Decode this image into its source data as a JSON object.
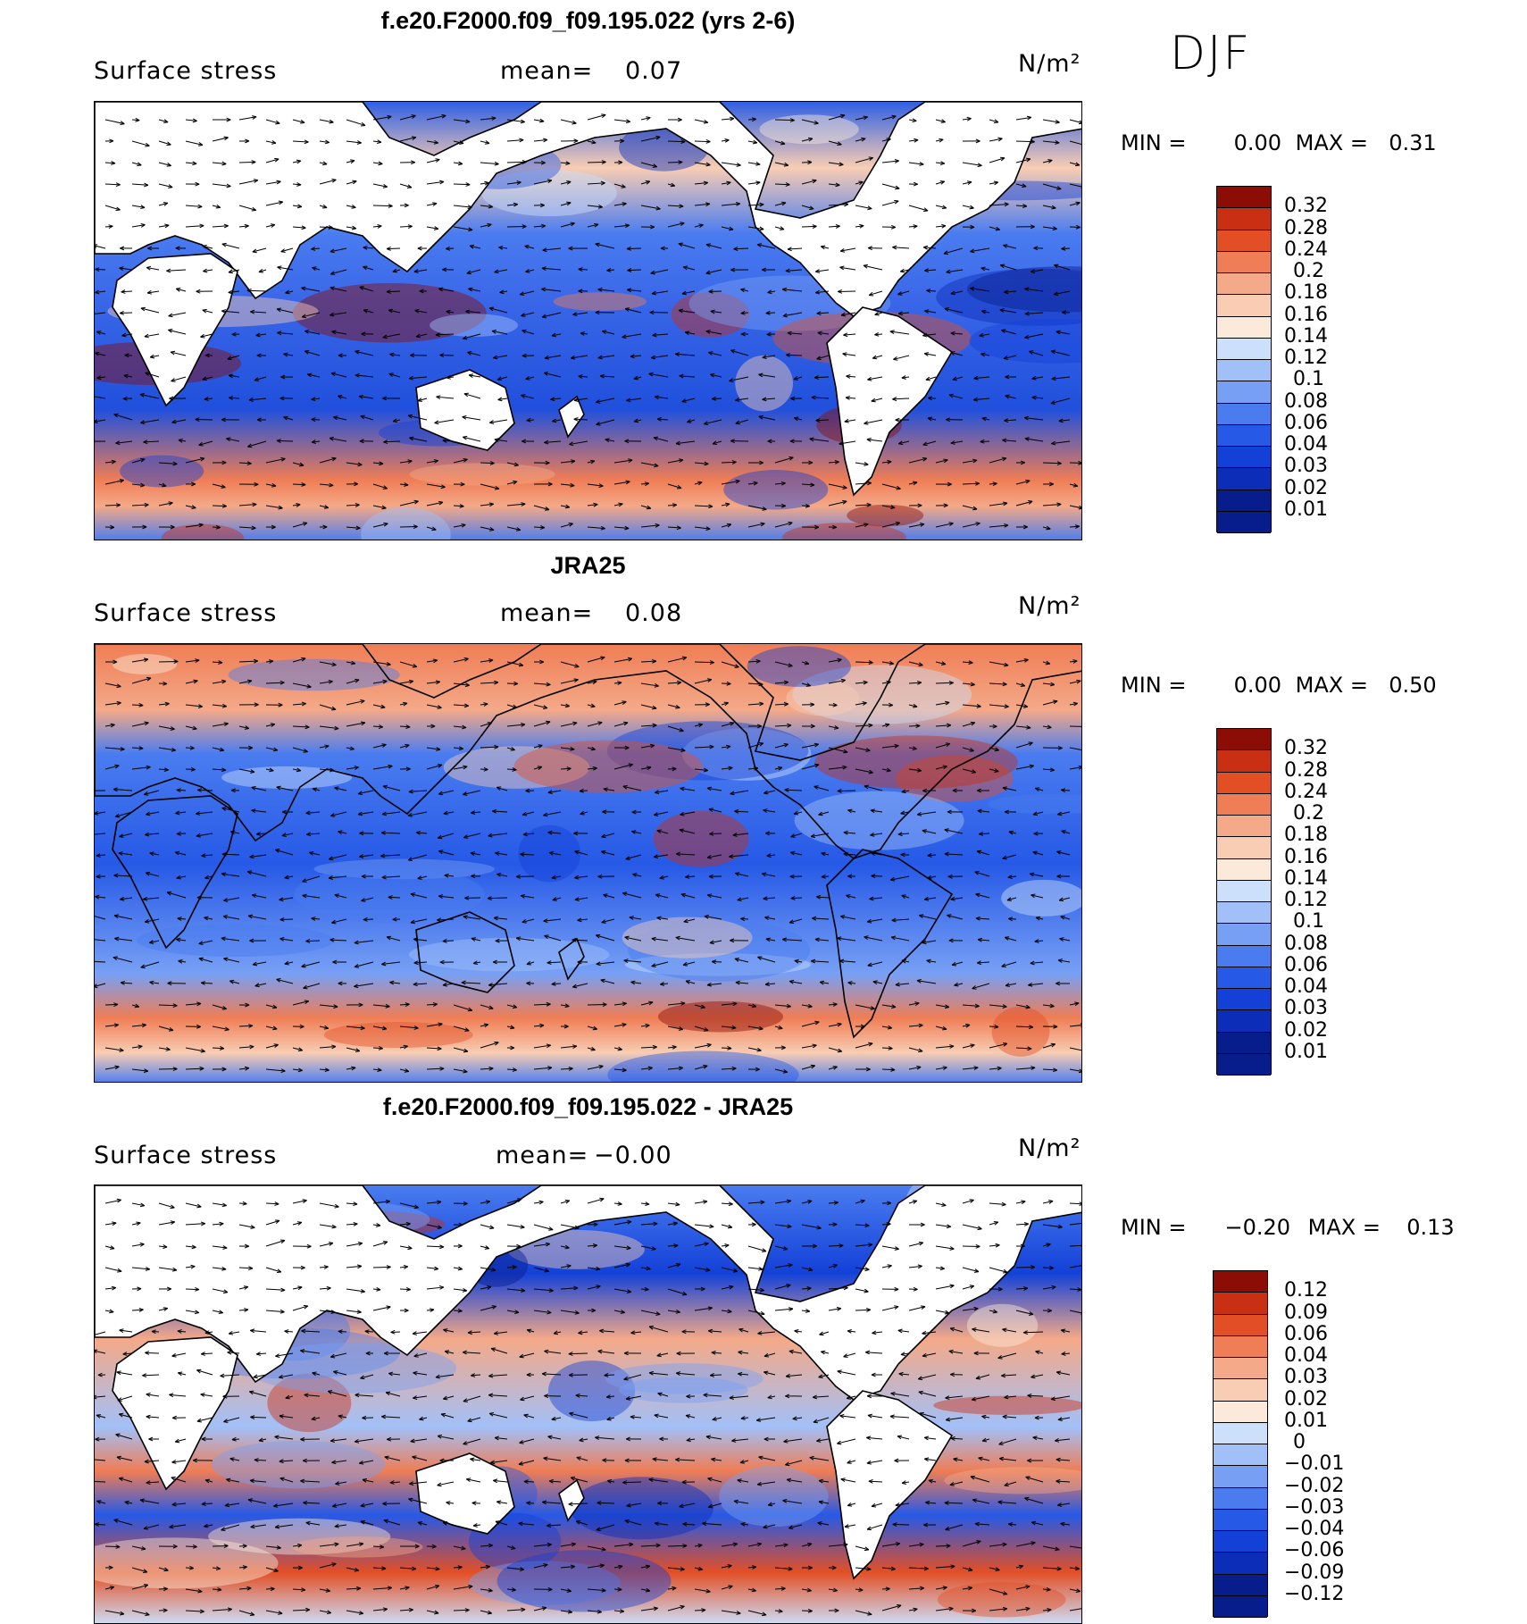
{
  "season": "DJF",
  "colors": {
    "ramp_abs": [
      "#081d8c",
      "#0b2db8",
      "#1341d8",
      "#2659e6",
      "#4a7cf0",
      "#77a0f5",
      "#a2c0f8",
      "#cde0fb",
      "#fbead9",
      "#f8cdb3",
      "#f4a988",
      "#ef7d55",
      "#e24f25",
      "#c92f13",
      "#8b0d06"
    ],
    "ramp_diff": [
      "#081d8c",
      "#0b2db8",
      "#1341d8",
      "#2659e6",
      "#4a7cf0",
      "#77a0f5",
      "#a2c0f8",
      "#cde0fb",
      "#fbead9",
      "#f8cdb3",
      "#f4a988",
      "#ef7d55",
      "#e24f25",
      "#c92f13",
      "#8b0d06"
    ]
  },
  "panels": [
    {
      "title": "f.e20.F2000.f09_f09.195.022 (yrs 2-6)",
      "variable": "Surface stress",
      "mean_label": "mean=",
      "mean_value": "0.07",
      "units": "N/m²",
      "min_label": "MIN =",
      "min_value": "0.00",
      "max_label": "MAX =",
      "max_value": "0.31",
      "colorbar_ticks": [
        "0.32",
        "0.28",
        "0.24",
        "0.2",
        "0.18",
        "0.16",
        "0.14",
        "0.12",
        "0.1",
        "0.08",
        "0.06",
        "0.04",
        "0.03",
        "0.02",
        "0.01"
      ]
    },
    {
      "title": "JRA25",
      "variable": "Surface stress",
      "mean_label": "mean=",
      "mean_value": "0.08",
      "units": "N/m²",
      "min_label": "MIN =",
      "min_value": "0.00",
      "max_label": "MAX =",
      "max_value": "0.50",
      "colorbar_ticks": [
        "0.32",
        "0.28",
        "0.24",
        "0.2",
        "0.18",
        "0.16",
        "0.14",
        "0.12",
        "0.1",
        "0.08",
        "0.06",
        "0.04",
        "0.03",
        "0.02",
        "0.01"
      ]
    },
    {
      "title": "f.e20.F2000.f09_f09.195.022 - JRA25",
      "variable": "Surface stress",
      "mean_label": "mean=",
      "mean_value": "−0.00",
      "units": "N/m²",
      "min_label": "MIN =",
      "min_value": "−0.20",
      "max_label": "MAX =",
      "max_value": "0.13",
      "colorbar_ticks": [
        "0.12",
        "0.09",
        "0.06",
        "0.04",
        "0.03",
        "0.02",
        "0.01",
        "0",
        "−0.01",
        "−0.02",
        "−0.03",
        "−0.04",
        "−0.06",
        "−0.09",
        "−0.12"
      ]
    }
  ]
}
